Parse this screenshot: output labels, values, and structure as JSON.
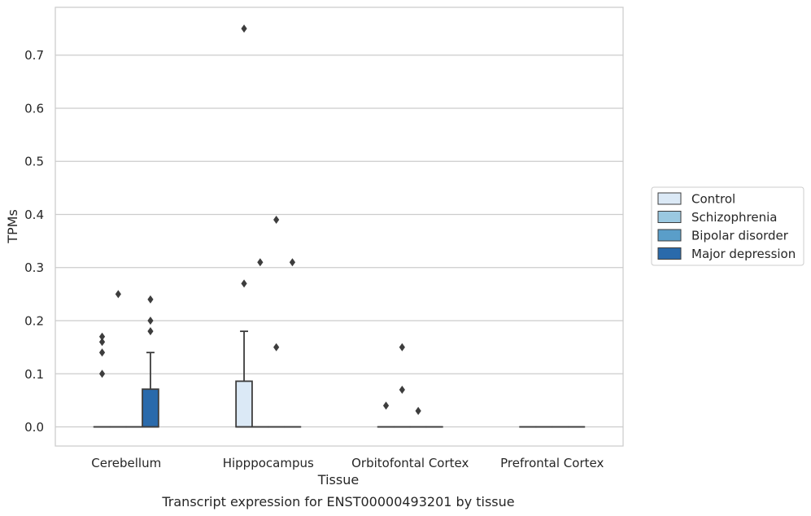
{
  "chart_data": {
    "type": "box",
    "xlabel": "Tissue",
    "ylabel": "TPMs",
    "caption": "Transcript expression for ENST00000493201 by tissue",
    "categories": [
      "Cerebellum",
      "Hipppocampus",
      "Orbitofontal Cortex",
      "Prefrontal Cortex"
    ],
    "groups": [
      "Control",
      "Schizophrenia",
      "Bipolar disorder",
      "Major depression"
    ],
    "colors": {
      "Control": "#dbe9f6",
      "Schizophrenia": "#9ac8e0",
      "Bipolar disorder": "#5a9ec9",
      "Major depression": "#2a6aab"
    },
    "ylim": [
      -0.036,
      0.79
    ],
    "yticks": [
      0.0,
      0.1,
      0.2,
      0.3,
      0.4,
      0.5,
      0.6,
      0.7
    ],
    "ytick_labels": [
      "0.0",
      "0.1",
      "0.2",
      "0.3",
      "0.4",
      "0.5",
      "0.6",
      "0.7"
    ],
    "grid": true,
    "legend_position": "right",
    "boxes": [
      {
        "category": "Cerebellum",
        "group": "Control",
        "q1": 0,
        "median": 0,
        "q3": 0,
        "whisker_low": 0,
        "whisker_high": 0,
        "outliers": [
          0.1,
          0.14,
          0.16,
          0.17
        ]
      },
      {
        "category": "Cerebellum",
        "group": "Schizophrenia",
        "q1": 0,
        "median": 0,
        "q3": 0,
        "whisker_low": 0,
        "whisker_high": 0,
        "outliers": [
          0.25
        ]
      },
      {
        "category": "Cerebellum",
        "group": "Bipolar disorder",
        "q1": 0,
        "median": 0,
        "q3": 0,
        "whisker_low": 0,
        "whisker_high": 0,
        "outliers": []
      },
      {
        "category": "Cerebellum",
        "group": "Major depression",
        "q1": 0,
        "median": 0,
        "q3": 0.071,
        "whisker_low": 0,
        "whisker_high": 0.14,
        "outliers": [
          0.18,
          0.2,
          0.24
        ]
      },
      {
        "category": "Hipppocampus",
        "group": "Control",
        "q1": 0,
        "median": 0,
        "q3": 0.086,
        "whisker_low": 0,
        "whisker_high": 0.18,
        "outliers": [
          0.27,
          0.75
        ]
      },
      {
        "category": "Hipppocampus",
        "group": "Schizophrenia",
        "q1": 0,
        "median": 0,
        "q3": 0,
        "whisker_low": 0,
        "whisker_high": 0,
        "outliers": [
          0.31
        ]
      },
      {
        "category": "Hipppocampus",
        "group": "Bipolar disorder",
        "q1": 0,
        "median": 0,
        "q3": 0,
        "whisker_low": 0,
        "whisker_high": 0,
        "outliers": [
          0.15,
          0.39
        ]
      },
      {
        "category": "Hipppocampus",
        "group": "Major depression",
        "q1": 0,
        "median": 0,
        "q3": 0,
        "whisker_low": 0,
        "whisker_high": 0,
        "outliers": [
          0.31
        ]
      },
      {
        "category": "Orbitofontal Cortex",
        "group": "Control",
        "q1": 0,
        "median": 0,
        "q3": 0,
        "whisker_low": 0,
        "whisker_high": 0,
        "outliers": [
          0.04
        ]
      },
      {
        "category": "Orbitofontal Cortex",
        "group": "Schizophrenia",
        "q1": 0,
        "median": 0,
        "q3": 0,
        "whisker_low": 0,
        "whisker_high": 0,
        "outliers": [
          0.07,
          0.15
        ]
      },
      {
        "category": "Orbitofontal Cortex",
        "group": "Bipolar disorder",
        "q1": 0,
        "median": 0,
        "q3": 0,
        "whisker_low": 0,
        "whisker_high": 0,
        "outliers": [
          0.03
        ]
      },
      {
        "category": "Orbitofontal Cortex",
        "group": "Major depression",
        "q1": 0,
        "median": 0,
        "q3": 0,
        "whisker_low": 0,
        "whisker_high": 0,
        "outliers": []
      },
      {
        "category": "Prefrontal Cortex",
        "group": "Control",
        "q1": 0,
        "median": 0,
        "q3": 0,
        "whisker_low": 0,
        "whisker_high": 0,
        "outliers": []
      },
      {
        "category": "Prefrontal Cortex",
        "group": "Schizophrenia",
        "q1": 0,
        "median": 0,
        "q3": 0,
        "whisker_low": 0,
        "whisker_high": 0,
        "outliers": []
      },
      {
        "category": "Prefrontal Cortex",
        "group": "Bipolar disorder",
        "q1": 0,
        "median": 0,
        "q3": 0,
        "whisker_low": 0,
        "whisker_high": 0,
        "outliers": []
      },
      {
        "category": "Prefrontal Cortex",
        "group": "Major depression",
        "q1": 0,
        "median": 0,
        "q3": 0,
        "whisker_low": 0,
        "whisker_high": 0,
        "outliers": []
      }
    ]
  }
}
